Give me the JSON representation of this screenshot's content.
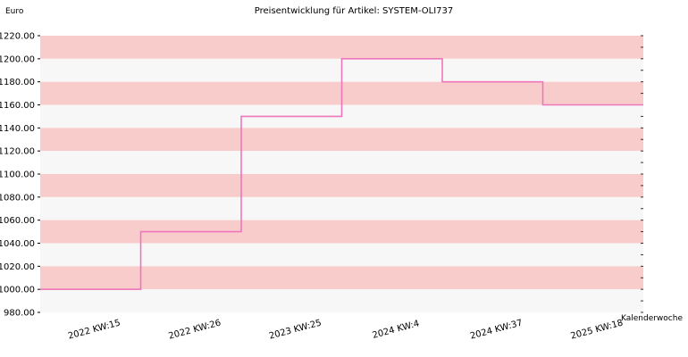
{
  "chart_data": {
    "type": "line",
    "step": true,
    "title": "Preisentwicklung für Artikel: SYSTEM-OLI737",
    "ylabel": "Euro",
    "xlabel": "Kalenderwoche",
    "ylim": [
      980,
      1220
    ],
    "yticks": [
      "980.00",
      "1000.00",
      "1020.00",
      "1040.00",
      "1060.00",
      "1080.00",
      "1100.00",
      "1120.00",
      "1140.00",
      "1160.00",
      "1180.00",
      "1200.00",
      "1220.00"
    ],
    "categories": [
      "2022 KW:15",
      "2022 KW:26",
      "2023 KW:25",
      "2024 KW:4",
      "2024 KW:37",
      "2025 KW:18"
    ],
    "values": [
      1000,
      1050,
      1150,
      1200,
      1180,
      1160
    ],
    "series_color": "#ee77bb",
    "band_colors": [
      "#f9cccc",
      "#f7f7f7"
    ],
    "grid": true
  }
}
